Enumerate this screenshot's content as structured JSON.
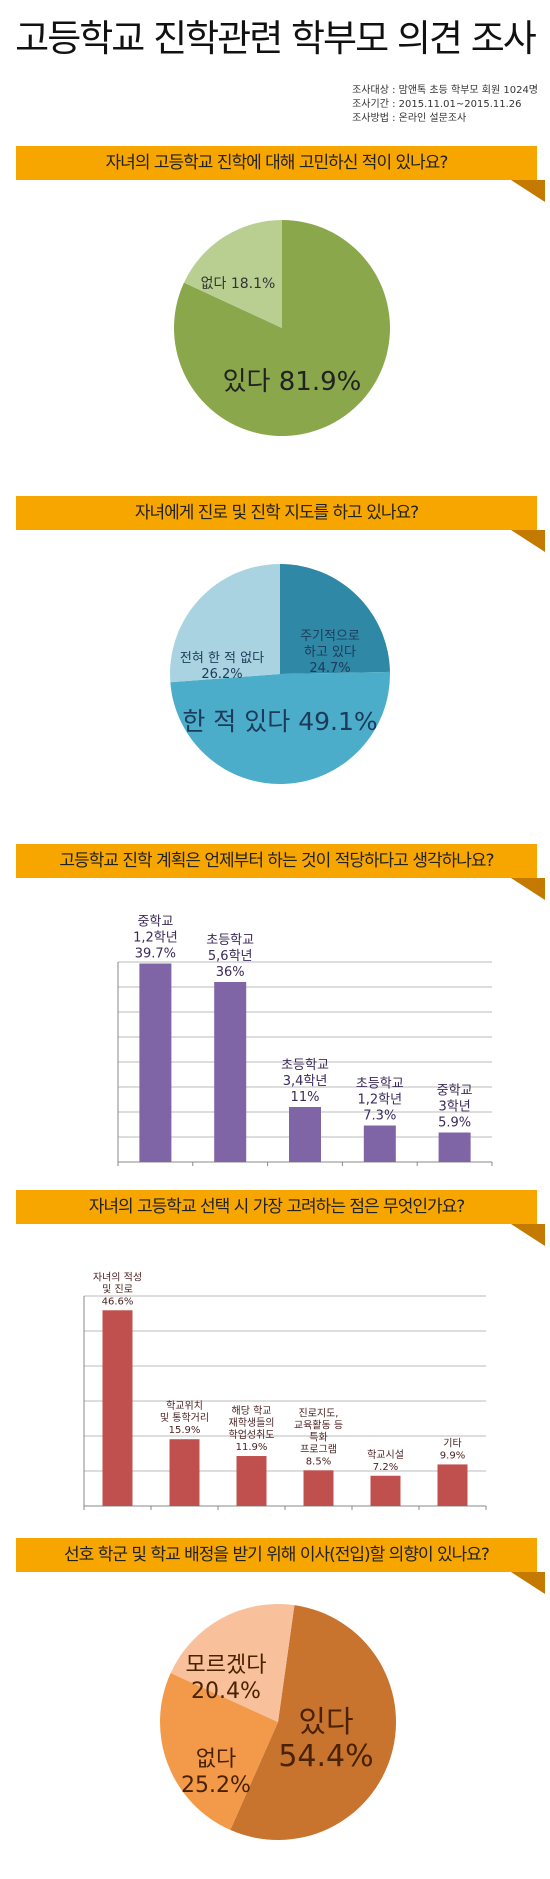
{
  "title": "고등학교 진학관련 학부모 의견 조사",
  "survey_info": [
    "조사대상 : 맘앤톡 초등 학부모 회원 1024명",
    "조사기간 : 2015.11.01~2015.11.26",
    "조사방법 : 온라인 설문조사"
  ],
  "colors": {
    "banner": "#f7a600",
    "banner_fold": "#c47a00",
    "q1": [
      "#8aa84b",
      "#b9cf92"
    ],
    "q2": [
      "#4badca",
      "#2e88a6",
      "#a9d3e0"
    ],
    "q3_bar": "#7f64a6",
    "q4_bar": "#c0504d",
    "q5": [
      "#c8742f",
      "#f39a4a",
      "#f8c19c"
    ]
  },
  "chart_data": [
    {
      "type": "pie",
      "question": "자녀의 고등학교 진학에 대해 고민하신 적이 있나요?",
      "slices": [
        {
          "label": "있다",
          "value": 81.9,
          "text": "있다 81.9%"
        },
        {
          "label": "없다",
          "value": 18.1,
          "text": "없다 18.1%"
        }
      ]
    },
    {
      "type": "pie",
      "question": "자녀에게 진로 및 진학 지도를 하고 있나요?",
      "slices": [
        {
          "label": "한 적 있다",
          "value": 49.1,
          "text": "한 적 있다 49.1%"
        },
        {
          "label": "주기적으로 하고 있다",
          "value": 24.7,
          "lines": [
            "주기적으로",
            "하고 있다",
            "24.7%"
          ]
        },
        {
          "label": "전혀 한 적 없다",
          "value": 26.2,
          "lines": [
            "전혀 한 적 없다",
            "26.2%"
          ]
        }
      ]
    },
    {
      "type": "bar",
      "question": "고등학교 진학 계획은 언제부터 하는 것이 적당하다고 생각하나요?",
      "ylim": [
        0,
        40
      ],
      "grid": true,
      "bars": [
        {
          "lines": [
            "중학교",
            "1,2학년",
            "39.7%"
          ],
          "value": 39.7
        },
        {
          "lines": [
            "초등학교",
            "5,6학년",
            "36%"
          ],
          "value": 36
        },
        {
          "lines": [
            "초등학교",
            "3,4학년",
            "11%"
          ],
          "value": 11
        },
        {
          "lines": [
            "초등학교",
            "1,2학년",
            "7.3%"
          ],
          "value": 7.3
        },
        {
          "lines": [
            "중학교",
            "3학년",
            "5.9%"
          ],
          "value": 5.9
        }
      ]
    },
    {
      "type": "bar",
      "question": "자녀의 고등학교 선택 시 가장 고려하는 점은 무엇인가요?",
      "ylim": [
        0,
        50
      ],
      "grid": true,
      "bars": [
        {
          "lines": [
            "자녀의 적성",
            "및 진로",
            "46.6%"
          ],
          "value": 46.6
        },
        {
          "lines": [
            "학교위치",
            "및 통학거리",
            "15.9%"
          ],
          "value": 15.9
        },
        {
          "lines": [
            "해당 학교",
            "재학생들의",
            "학업성취도",
            "11.9%"
          ],
          "value": 11.9
        },
        {
          "lines": [
            "진로지도,",
            "교육활동 등",
            "특화",
            "프로그램",
            "8.5%"
          ],
          "value": 8.5
        },
        {
          "lines": [
            "학교시설",
            "7.2%"
          ],
          "value": 7.2
        },
        {
          "lines": [
            "기타",
            "9.9%"
          ],
          "value": 9.9
        }
      ]
    },
    {
      "type": "pie",
      "question": "선호 학군 및 학교 배정을 받기 위해 이사(전입)할 의향이 있나요?",
      "slices": [
        {
          "label": "있다",
          "value": 54.4,
          "lines": [
            "있다",
            "54.4%"
          ]
        },
        {
          "label": "없다",
          "value": 25.2,
          "lines": [
            "없다",
            "25.2%"
          ]
        },
        {
          "label": "모르겠다",
          "value": 20.4,
          "lines": [
            "모르겠다",
            "20.4%"
          ]
        }
      ]
    }
  ]
}
